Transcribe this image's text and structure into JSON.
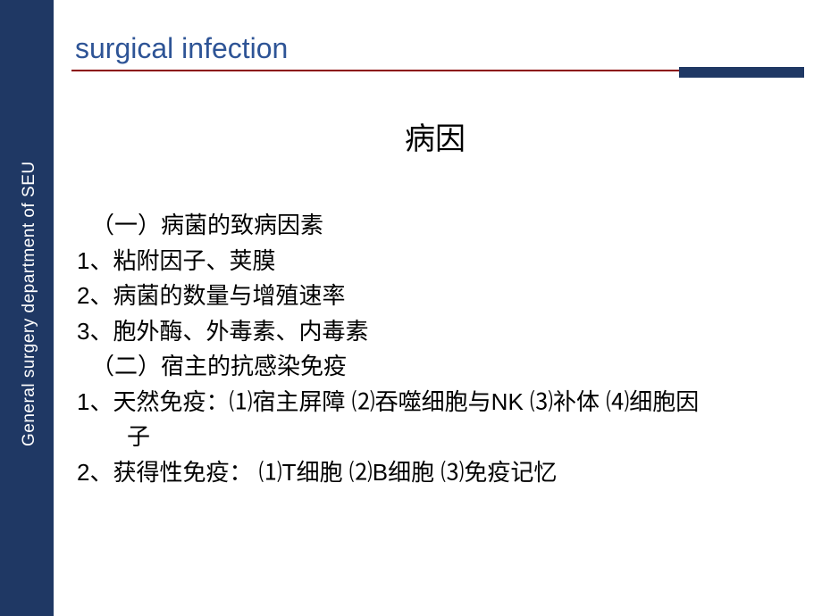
{
  "colors": {
    "sidebar_bg": "#1f3864",
    "header_text": "#2e5496",
    "divider_line": "#8b0000",
    "divider_block": "#1f3864",
    "body_text": "#000000",
    "page_bg": "#ffffff"
  },
  "typography": {
    "header_fontsize": 32,
    "title_fontsize": 34,
    "body_fontsize": 26,
    "sidebar_fontsize": 19
  },
  "sidebar": {
    "label": "General surgery department  of  SEU"
  },
  "header": {
    "title": "surgical infection"
  },
  "slide": {
    "title": "病因",
    "lines": [
      {
        "text": "（一）病菌的致病因素",
        "indent": 1
      },
      {
        "text": "1、粘附因子、荚膜",
        "indent": 0
      },
      {
        "text": "2、病菌的数量与增殖速率",
        "indent": 0
      },
      {
        "text": "3、胞外酶、外毒素、内毒素",
        "indent": 0
      },
      {
        "text": "（二）宿主的抗感染免疫",
        "indent": 1
      },
      {
        "text": "1、天然免疫：⑴宿主屏障 ⑵吞噬细胞与NK ⑶补体 ⑷细胞因",
        "indent": 0
      },
      {
        "text": "子",
        "indent": 2
      },
      {
        "text": "2、获得性免疫： ⑴T细胞 ⑵B细胞 ⑶免疫记忆",
        "indent": 0
      }
    ]
  }
}
